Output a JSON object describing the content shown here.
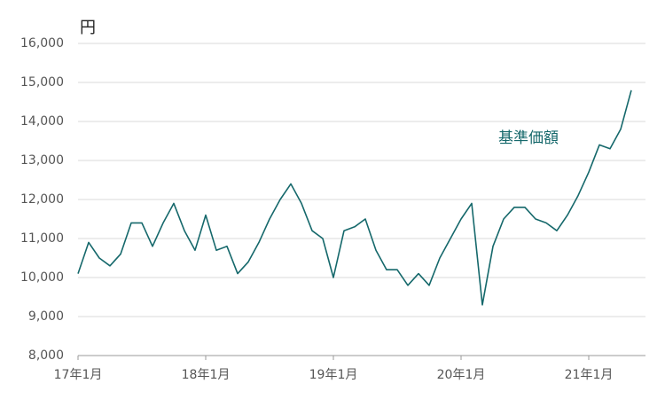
{
  "chart_data": {
    "type": "line",
    "unit": "円",
    "annotation": "基準価額",
    "x": [
      "2017-01",
      "2017-02",
      "2017-03",
      "2017-04",
      "2017-05",
      "2017-06",
      "2017-07",
      "2017-08",
      "2017-09",
      "2017-10",
      "2017-11",
      "2017-12",
      "2018-01",
      "2018-02",
      "2018-03",
      "2018-04",
      "2018-05",
      "2018-06",
      "2018-07",
      "2018-08",
      "2018-09",
      "2018-10",
      "2018-11",
      "2018-12",
      "2019-01",
      "2019-02",
      "2019-03",
      "2019-04",
      "2019-05",
      "2019-06",
      "2019-07",
      "2019-08",
      "2019-09",
      "2019-10",
      "2019-11",
      "2019-12",
      "2020-01",
      "2020-02",
      "2020-03",
      "2020-04",
      "2020-05",
      "2020-06",
      "2020-07",
      "2020-08",
      "2020-09",
      "2020-10",
      "2020-11",
      "2020-12",
      "2021-01",
      "2021-02",
      "2021-03",
      "2021-04",
      "2021-05"
    ],
    "series": [
      {
        "name": "基準価額",
        "color": "#15686b",
        "values": [
          10100,
          10900,
          10500,
          10300,
          10600,
          11400,
          11400,
          10800,
          11400,
          11900,
          11200,
          10700,
          11600,
          10700,
          10800,
          10100,
          10400,
          10900,
          11500,
          12000,
          12400,
          11900,
          11200,
          11000,
          10000,
          11200,
          11300,
          11500,
          10700,
          10200,
          10200,
          9800,
          10100,
          9800,
          10500,
          11000,
          11500,
          11900,
          9300,
          10800,
          11500,
          11800,
          11800,
          11500,
          11400,
          11200,
          11600,
          12100,
          12700,
          13400,
          13300,
          13800,
          14800
        ]
      }
    ],
    "xlim": [
      "2017-01",
      "2021-06"
    ],
    "xticks": [
      {
        "value": "2017-01",
        "label": "17年1月"
      },
      {
        "value": "2018-01",
        "label": "18年1月"
      },
      {
        "value": "2019-01",
        "label": "19年1月"
      },
      {
        "value": "2020-01",
        "label": "20年1月"
      },
      {
        "value": "2021-01",
        "label": "21年1月"
      }
    ],
    "ylim": [
      8000,
      16000
    ],
    "yticks": [
      {
        "value": 8000,
        "label": "8,000"
      },
      {
        "value": 9000,
        "label": "9,000"
      },
      {
        "value": 10000,
        "label": "10,000"
      },
      {
        "value": 11000,
        "label": "11,000"
      },
      {
        "value": 12000,
        "label": "12,000"
      },
      {
        "value": 13000,
        "label": "13,000"
      },
      {
        "value": 14000,
        "label": "14,000"
      },
      {
        "value": 15000,
        "label": "15,000"
      },
      {
        "value": 16000,
        "label": "16,000"
      }
    ],
    "grid": true
  }
}
